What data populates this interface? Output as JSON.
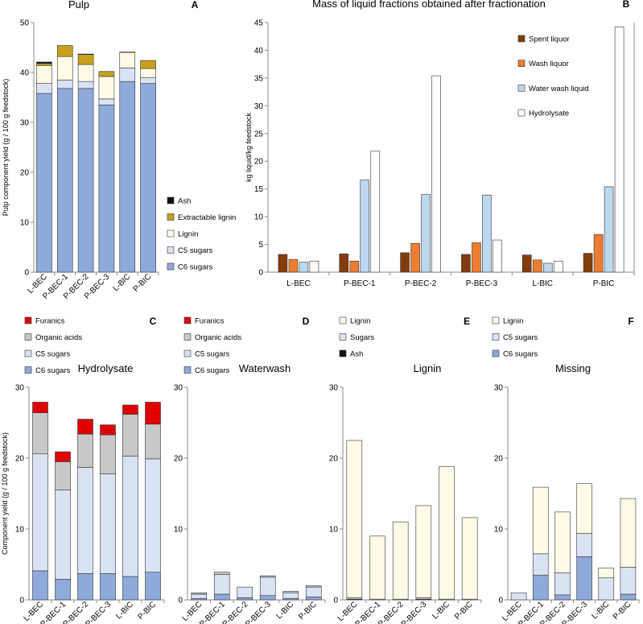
{
  "colors": {
    "c6": "#8eaadb",
    "c5": "#dae3f3",
    "lignin": "#fffbe6",
    "extract": "#c8a01e",
    "ash": "#111111",
    "organic": "#c8c8c8",
    "furanics": "#e00000",
    "spent": "#843c0c",
    "wash": "#ed7d31",
    "water": "#bdd7ee",
    "hydro": "#ffffff",
    "stroke": "#333333"
  },
  "chart_data": [
    {
      "id": "A",
      "letter": "A",
      "type": "bar",
      "stacked": true,
      "title": "Pulp",
      "ylabel": "Pulp component yield (g / 100 g feedstock)",
      "ylim": [
        0,
        50
      ],
      "yticks": [
        0,
        10,
        20,
        30,
        40,
        50
      ],
      "categories": [
        "L-BEC",
        "P-BEC-1",
        "P-BEC-2",
        "P-BEC-3",
        "L-BIC",
        "P-BIC"
      ],
      "series": [
        {
          "name": "C6 sugars",
          "color": "c6",
          "values": [
            35.8,
            36.8,
            36.8,
            33.5,
            38.2,
            37.8
          ]
        },
        {
          "name": "C5 sugars",
          "color": "c5",
          "values": [
            2.0,
            1.7,
            1.4,
            1.2,
            2.7,
            1.2
          ]
        },
        {
          "name": "Lignin",
          "color": "lignin",
          "values": [
            3.6,
            4.7,
            3.4,
            4.5,
            3.1,
            1.8
          ]
        },
        {
          "name": "Extractable lignin",
          "color": "extract",
          "values": [
            0.4,
            2.2,
            2.0,
            1.0,
            0.0,
            1.6
          ]
        },
        {
          "name": "Ash",
          "color": "ash",
          "values": [
            0.3,
            0.0,
            0.1,
            0.0,
            0.1,
            0.0
          ]
        }
      ],
      "legend_order": [
        "Ash",
        "Extractable lignin",
        "Lignin",
        "C5 sugars",
        "C6 sugars"
      ]
    },
    {
      "id": "B",
      "letter": "B",
      "type": "bar",
      "stacked": false,
      "title": "Mass of liquid fractions obtained after fractionation",
      "ylabel": "kg liquid/kg feedstock",
      "ylim": [
        0,
        45
      ],
      "yticks": [
        0,
        5,
        10,
        15,
        20,
        25,
        30,
        35,
        40,
        45
      ],
      "categories": [
        "L-BEC",
        "P-BEC-1",
        "P-BEC-2",
        "P-BEC-3",
        "L-BIC",
        "P-BIC"
      ],
      "series": [
        {
          "name": "Spent liquor",
          "color": "spent",
          "values": [
            3.2,
            3.3,
            3.5,
            3.2,
            3.1,
            3.4
          ]
        },
        {
          "name": "Wash liquor",
          "color": "wash",
          "values": [
            2.3,
            2.0,
            5.2,
            5.3,
            2.2,
            6.8
          ]
        },
        {
          "name": "Water wash liquid",
          "color": "water",
          "values": [
            1.8,
            16.6,
            14.0,
            13.9,
            1.6,
            15.4
          ]
        },
        {
          "name": "Hydrolysate",
          "color": "hydro",
          "values": [
            2.0,
            21.8,
            35.4,
            5.8,
            2.0,
            44.2
          ]
        }
      ],
      "legend_order": [
        "Spent liquor",
        "Wash liquor",
        "Water wash liquid",
        "Hydrolysate"
      ]
    },
    {
      "id": "C",
      "letter": "C",
      "type": "bar",
      "stacked": true,
      "title": "Hydrolysate",
      "ylabel": "Component yield (g / 100 g feedstock)",
      "ylim": [
        0,
        30
      ],
      "yticks": [
        0,
        10,
        20,
        30
      ],
      "categories": [
        "L-BEC",
        "P-BEC-1",
        "P-BEC-2",
        "P-BEC-3",
        "L-BIC",
        "P-BIC"
      ],
      "series": [
        {
          "name": "C6 sugars",
          "color": "c6",
          "values": [
            4.1,
            2.9,
            3.7,
            3.7,
            3.3,
            3.9
          ]
        },
        {
          "name": "C5 sugars",
          "color": "c5",
          "values": [
            16.5,
            12.6,
            15.0,
            14.1,
            17.0,
            16.0
          ]
        },
        {
          "name": "Organic acids",
          "color": "organic",
          "values": [
            5.8,
            4.0,
            4.7,
            5.5,
            5.9,
            4.9
          ]
        },
        {
          "name": "Furanics",
          "color": "furanics",
          "values": [
            1.5,
            1.4,
            2.1,
            1.4,
            1.3,
            3.1
          ]
        }
      ],
      "legend_order": [
        "Furanics",
        "Organic acids",
        "C5 sugars",
        "C6 sugars"
      ]
    },
    {
      "id": "D",
      "letter": "D",
      "type": "bar",
      "stacked": true,
      "title": "Waterwash",
      "ylabel": "",
      "ylim": [
        0,
        30
      ],
      "yticks": [
        0,
        10,
        20,
        30
      ],
      "categories": [
        "L-BEC",
        "P-BEC-1",
        "P-BEC-2",
        "P-BEC-3",
        "L-BIC",
        "P-BIC"
      ],
      "series": [
        {
          "name": "C6 sugars",
          "color": "c6",
          "values": [
            0.2,
            0.8,
            0.3,
            0.6,
            0.2,
            0.4
          ]
        },
        {
          "name": "C5 sugars",
          "color": "c5",
          "values": [
            0.6,
            2.8,
            1.5,
            2.6,
            0.8,
            1.4
          ]
        },
        {
          "name": "Organic acids",
          "color": "organic",
          "values": [
            0.2,
            0.3,
            0.0,
            0.2,
            0.2,
            0.2
          ]
        },
        {
          "name": "Furanics",
          "color": "furanics",
          "values": [
            0.0,
            0.0,
            0.0,
            0.0,
            0.0,
            0.0
          ]
        }
      ],
      "legend_order": [
        "Furanics",
        "Organic acids",
        "C5 sugars",
        "C6 sugars"
      ]
    },
    {
      "id": "E",
      "letter": "E",
      "type": "bar",
      "stacked": true,
      "title": "Lignin",
      "ylabel": "",
      "ylim": [
        0,
        30
      ],
      "yticks": [
        0,
        10,
        20,
        30
      ],
      "categories": [
        "L-BEC",
        "P-BEC-1",
        "P-BEC-2",
        "P-BEC-3",
        "L-BIC",
        "P-BIC"
      ],
      "series": [
        {
          "name": "Ash",
          "color": "ash",
          "values": [
            0.1,
            0.0,
            0.0,
            0.1,
            0.0,
            0.0
          ]
        },
        {
          "name": "Sugars",
          "color": "c5",
          "values": [
            0.2,
            0.1,
            0.1,
            0.2,
            0.1,
            0.1
          ]
        },
        {
          "name": "Lignin",
          "color": "lignin",
          "values": [
            22.2,
            8.9,
            10.9,
            13.0,
            18.7,
            11.5
          ]
        }
      ],
      "legend_order": [
        "Lignin",
        "Sugars",
        "Ash"
      ]
    },
    {
      "id": "F",
      "letter": "F",
      "type": "bar",
      "stacked": true,
      "title": "Missing",
      "ylabel": "",
      "ylim": [
        0,
        30
      ],
      "yticks": [
        0,
        10,
        20,
        30
      ],
      "categories": [
        "L-BEC",
        "P-BEC-1",
        "P-BEC-2",
        "P-BEC-3",
        "L-BIC",
        "P-BIC"
      ],
      "series": [
        {
          "name": "C6 sugars",
          "color": "c6",
          "values": [
            0.0,
            3.5,
            0.7,
            6.1,
            0.0,
            0.8
          ]
        },
        {
          "name": "C5 sugars",
          "color": "c5",
          "values": [
            1.0,
            3.0,
            3.1,
            3.3,
            3.1,
            3.8
          ]
        },
        {
          "name": "Lignin",
          "color": "lignin",
          "values": [
            0.0,
            9.4,
            8.6,
            7.0,
            1.4,
            9.7
          ]
        }
      ],
      "legend_order": [
        "Lignin",
        "C5 sugars",
        "C6 sugars"
      ]
    }
  ]
}
